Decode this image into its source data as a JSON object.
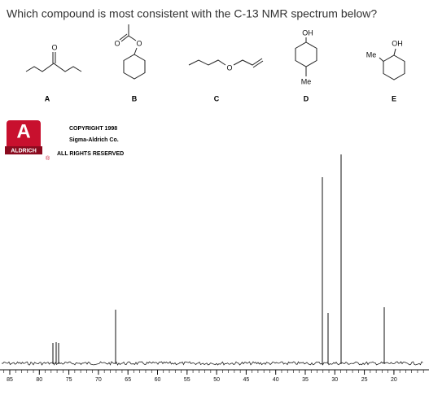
{
  "question": "Which compound is most consistent with the C-13 NMR spectrum below?",
  "compounds": [
    {
      "label": "A",
      "atoms": [
        "O"
      ]
    },
    {
      "label": "B",
      "atoms": [
        "O",
        "O"
      ]
    },
    {
      "label": "C",
      "atoms": [
        "O"
      ]
    },
    {
      "label": "D",
      "atoms": [
        "OH",
        "Me"
      ]
    },
    {
      "label": "E",
      "atoms": [
        "OH",
        "Me"
      ]
    }
  ],
  "logo": {
    "letter": "A",
    "name": "ALDRICH",
    "mark": "®"
  },
  "copyright": [
    "COPYRIGHT 1998",
    "Sigma-Aldrich Co.",
    "ALL RIGHTS RESERVED"
  ],
  "spectrum": {
    "xticks": [
      85,
      80,
      75,
      70,
      65,
      60,
      55,
      50,
      45,
      40,
      35,
      30,
      25,
      20
    ]
  }
}
